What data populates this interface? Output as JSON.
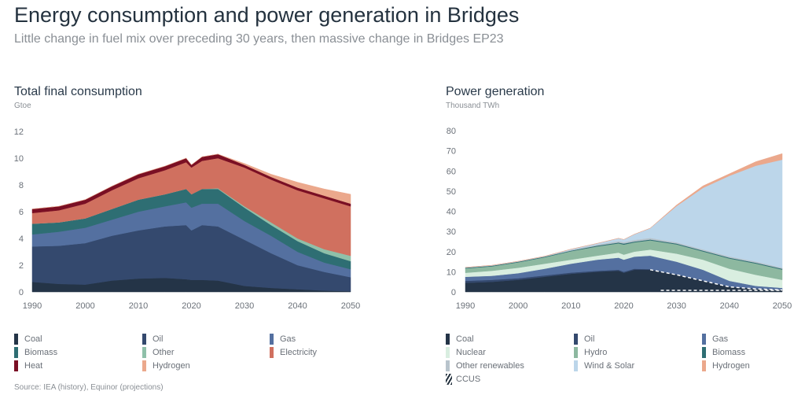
{
  "title": "Energy consumption and power generation in Bridges",
  "subtitle": "Little change in fuel mix over preceding 30 years, then massive change in Bridges EP23",
  "source": "Source: IEA (history), Equinor (projections)",
  "chart_data": [
    {
      "type": "area",
      "stacked": true,
      "title": "Total final consumption",
      "ylabel": "Gtoe",
      "ylim": [
        0,
        12
      ],
      "yticks": [
        0,
        2,
        4,
        6,
        8,
        10,
        12
      ],
      "xlim": [
        1990,
        2050
      ],
      "xticks": [
        1990,
        2000,
        2010,
        2020,
        2030,
        2040,
        2050
      ],
      "legend": "bottom",
      "x": [
        1990,
        1995,
        2000,
        2005,
        2010,
        2015,
        2019,
        2020,
        2022,
        2025,
        2030,
        2035,
        2040,
        2045,
        2050
      ],
      "series": [
        {
          "name": "Coal",
          "color": "#243447",
          "values": [
            0.75,
            0.6,
            0.55,
            0.85,
            1.0,
            1.05,
            0.95,
            0.9,
            0.9,
            0.85,
            0.45,
            0.3,
            0.2,
            0.1,
            0.05
          ]
        },
        {
          "name": "Oil",
          "color": "#34496e",
          "values": [
            2.65,
            2.85,
            3.1,
            3.35,
            3.6,
            3.85,
            4.05,
            3.7,
            4.1,
            4.05,
            3.45,
            2.6,
            1.8,
            1.4,
            1.05
          ]
        },
        {
          "name": "Gas",
          "color": "#5470a0",
          "values": [
            0.9,
            1.05,
            1.15,
            1.2,
            1.4,
            1.5,
            1.7,
            1.7,
            1.6,
            1.7,
            1.4,
            1.3,
            1.0,
            0.7,
            0.6
          ]
        },
        {
          "name": "Biomass",
          "color": "#2e6e73",
          "values": [
            0.8,
            0.7,
            0.7,
            0.8,
            0.9,
            0.9,
            1.0,
            1.0,
            1.1,
            1.1,
            1.0,
            0.8,
            0.8,
            0.7,
            0.6
          ]
        },
        {
          "name": "Other",
          "color": "#8fc0a9",
          "values": [
            0,
            0,
            0,
            0,
            0,
            0,
            0,
            0,
            0,
            0.05,
            0.1,
            0.2,
            0.2,
            0.3,
            0.4
          ]
        },
        {
          "name": "Electricity",
          "color": "#d0705f",
          "values": [
            0.8,
            0.9,
            1.1,
            1.4,
            1.6,
            1.8,
            2.0,
            2.0,
            2.1,
            2.25,
            2.9,
            3.2,
            3.6,
            3.8,
            3.7
          ]
        },
        {
          "name": "Heat",
          "color": "#7a0f24",
          "values": [
            0.3,
            0.3,
            0.3,
            0.3,
            0.3,
            0.3,
            0.3,
            0.2,
            0.3,
            0.3,
            0.2,
            0.2,
            0.2,
            0.2,
            0.2
          ]
        },
        {
          "name": "Hydrogen",
          "color": "#eba88c",
          "values": [
            0,
            0,
            0,
            0,
            0,
            0,
            0,
            0,
            0,
            0,
            0.1,
            0.2,
            0.4,
            0.5,
            0.7
          ]
        }
      ]
    },
    {
      "type": "area",
      "stacked": true,
      "title": "Power generation",
      "ylabel": "Thousand TWh",
      "ylim": [
        0,
        80
      ],
      "yticks": [
        0,
        10,
        20,
        30,
        40,
        50,
        60,
        70,
        80
      ],
      "xlim": [
        1990,
        2050
      ],
      "xticks": [
        1990,
        2000,
        2010,
        2020,
        2030,
        2040,
        2050
      ],
      "legend": "bottom",
      "x": [
        1990,
        1995,
        2000,
        2005,
        2010,
        2015,
        2019,
        2020,
        2022,
        2025,
        2030,
        2035,
        2040,
        2045,
        2050
      ],
      "series": [
        {
          "name": "Coal",
          "color": "#243447",
          "values": [
            4.5,
            5,
            6,
            7.5,
            9,
            10,
            10.5,
            9.5,
            11,
            11,
            8.5,
            5.5,
            2.5,
            1.5,
            1.0
          ]
        },
        {
          "name": "Oil",
          "color": "#34496e",
          "values": [
            1,
            1,
            0.8,
            0.7,
            0.6,
            0.5,
            0.5,
            0.5,
            0.5,
            0.3,
            0.3,
            0.3,
            0.3,
            0.2,
            0.2
          ]
        },
        {
          "name": "Gas",
          "color": "#5470a0",
          "values": [
            2,
            2,
            2.5,
            3.3,
            4.4,
            5.5,
            6,
            6,
            6,
            6.7,
            6.2,
            5.2,
            2.7,
            1.3,
            0.8
          ]
        },
        {
          "name": "Nuclear",
          "color": "#d9eee0",
          "values": [
            2,
            2.5,
            2.7,
            2.5,
            2,
            2,
            2.5,
            2.5,
            2.5,
            3,
            4,
            5,
            6,
            5.5,
            4
          ]
        },
        {
          "name": "Hydro",
          "color": "#8db8a0",
          "values": [
            2.2,
            2.2,
            2.7,
            3.2,
            4.2,
            4.6,
            4.6,
            5,
            4.6,
            4.6,
            4.6,
            4.1,
            5.1,
            5.6,
            5.1
          ]
        },
        {
          "name": "Biomass",
          "color": "#2e6e73",
          "values": [
            0.3,
            0.3,
            0.3,
            0.3,
            0.3,
            0.4,
            0.4,
            0.5,
            0.4,
            0.4,
            0.4,
            0.4,
            0.4,
            0.4,
            0.4
          ]
        },
        {
          "name": "Other renewables",
          "color": "#b8c4cc",
          "values": [
            0.1,
            0.1,
            0.1,
            0.1,
            0.3,
            0.5,
            0.7,
            0.7,
            0.8,
            0.8,
            0.6,
            0.6,
            0.6,
            0.6,
            0.5
          ]
        },
        {
          "name": "Wind & Solar",
          "color": "#bcd6ea",
          "values": [
            0.1,
            0.1,
            0.1,
            0.1,
            0.4,
            0.6,
            1.4,
            1.3,
            2.8,
            4.8,
            18,
            30.5,
            40,
            47.5,
            53.6
          ]
        },
        {
          "name": "Hydrogen",
          "color": "#eba88c",
          "values": [
            0,
            0,
            0,
            0,
            0,
            0,
            0,
            0,
            0,
            0,
            0.5,
            1,
            1,
            2,
            3
          ]
        }
      ],
      "ccus": {
        "name": "CCUS",
        "style": "hatched"
      }
    }
  ]
}
